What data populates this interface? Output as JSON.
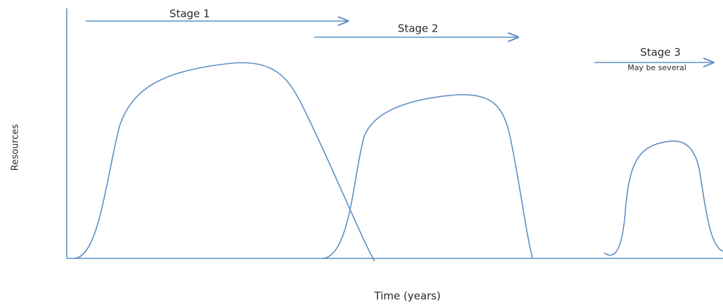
{
  "axes": {
    "y_label": "Resources",
    "x_label": "Time (years)"
  },
  "stages": [
    {
      "label": "Stage 1"
    },
    {
      "label": "Stage 2"
    },
    {
      "label": "Stage 3",
      "note": "May be several"
    }
  ]
}
